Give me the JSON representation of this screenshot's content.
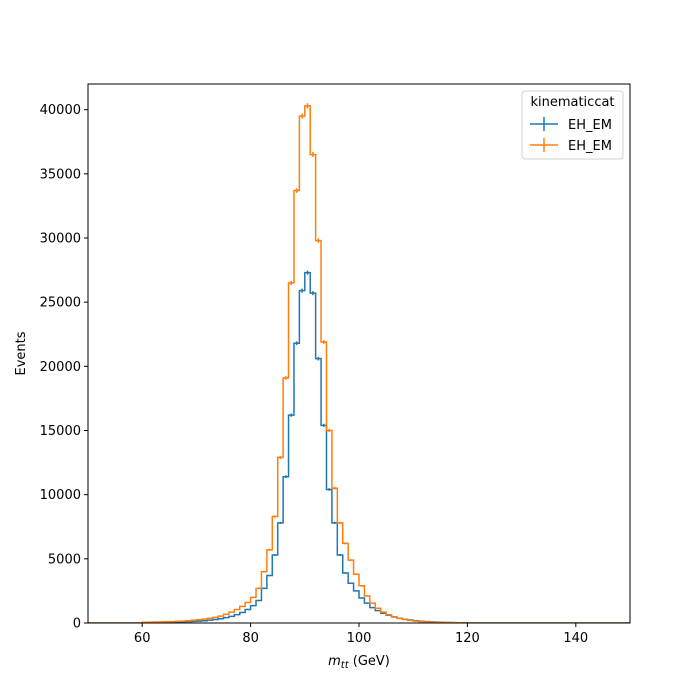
{
  "chart_data": {
    "type": "line",
    "title": "",
    "xlabel_math": "m",
    "xlabel_sub": "tt",
    "xlabel_unit": " (GeV)",
    "ylabel": "Events",
    "xlim": [
      50,
      150
    ],
    "ylim": [
      0,
      42000
    ],
    "xticks": [
      60,
      80,
      100,
      120,
      140
    ],
    "yticks": [
      0,
      5000,
      10000,
      15000,
      20000,
      25000,
      30000,
      35000,
      40000
    ],
    "grid": false,
    "legend": {
      "title": "kinematiccat",
      "placement": "top-right"
    },
    "bin_edges": [
      60,
      61,
      62,
      63,
      64,
      65,
      66,
      67,
      68,
      69,
      70,
      71,
      72,
      73,
      74,
      75,
      76,
      77,
      78,
      79,
      80,
      81,
      82,
      83,
      84,
      85,
      86,
      87,
      88,
      89,
      90,
      91,
      92,
      93,
      94,
      95,
      96,
      97,
      98,
      99,
      100,
      101,
      102,
      103,
      104,
      105,
      106,
      107,
      108,
      109,
      110,
      111,
      112,
      113,
      114,
      115,
      116,
      117,
      118,
      119,
      120
    ],
    "series": [
      {
        "name": "EH_EM",
        "color": "#1f77b4",
        "values": [
          40,
          45,
          50,
          55,
          60,
          70,
          80,
          95,
          110,
          130,
          150,
          180,
          220,
          270,
          330,
          420,
          520,
          650,
          820,
          1050,
          1350,
          1750,
          2700,
          3700,
          5300,
          7800,
          11400,
          16200,
          21800,
          25900,
          27300,
          25700,
          20600,
          15400,
          10400,
          7800,
          5300,
          3900,
          3100,
          2500,
          1950,
          1550,
          1200,
          960,
          760,
          600,
          470,
          370,
          290,
          230,
          180,
          140,
          110,
          85,
          65,
          50,
          40,
          30,
          22,
          15
        ]
      },
      {
        "name": "EH_EM",
        "color": "#ff7f0e",
        "values": [
          60,
          65,
          75,
          85,
          95,
          110,
          130,
          150,
          175,
          210,
          250,
          300,
          360,
          440,
          540,
          680,
          850,
          1050,
          1300,
          1600,
          2000,
          2700,
          4000,
          5700,
          8300,
          12900,
          19100,
          26500,
          33700,
          39500,
          40300,
          36500,
          29800,
          21900,
          15000,
          10500,
          7800,
          6200,
          4900,
          3800,
          2900,
          2100,
          1550,
          1150,
          850,
          640,
          480,
          360,
          270,
          200,
          150,
          110,
          80,
          60,
          45,
          35,
          27,
          20,
          15,
          10
        ]
      }
    ]
  }
}
